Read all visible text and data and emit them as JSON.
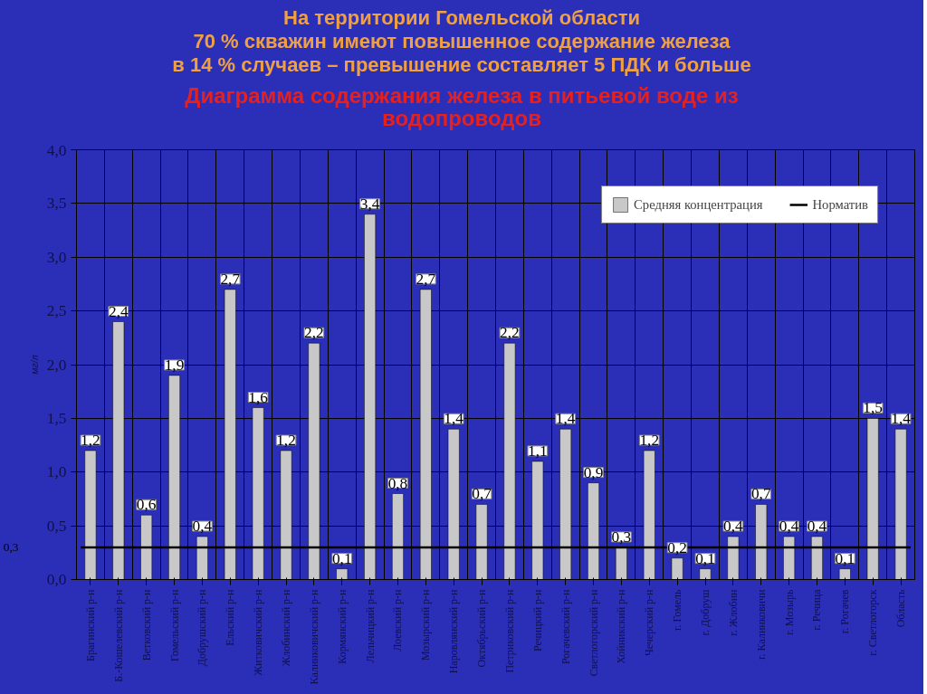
{
  "chart_data": {
    "type": "bar",
    "title": "На территории Гомельской области\n70 % скважин  имеют повышенное содержание железа\nв 14 % случаев – превышение  составляет 5 ПДК и больше",
    "subtitle": "Диаграмма  содержания железа в питьевой воде из\nводопроводов",
    "ylabel": "мг/л",
    "categories": [
      "Брагинский р-н",
      "Б.-Кошелевский р-н",
      "Ветковский р-н",
      "Гомельский р-н",
      "Добрушский р-н",
      "Ельский р-н",
      "Житковичский р-н",
      "Жлобинский р-н",
      "Калинковичский р-н",
      "Кормянский р-н",
      "Лельчицкий р-н",
      "Лоевский р-н",
      "Мозырский р-н",
      "Наровлянский р-н",
      "Октябрьский р-н",
      "Петриковский р-н",
      "Речицкий р-н",
      "Рогачевский р-н",
      "Светлогорский р-н",
      "Хойникский р-н",
      "Чечерский р-н",
      "г. Гомель",
      "г. Добруш",
      "г. Жлобин",
      "г. Калинковичи",
      "г. Мозырь",
      "г. Речица",
      "г. Рогачев",
      "г. Светлогорск",
      "Область"
    ],
    "series": [
      {
        "name": "Средняя концентрация",
        "color": "#c8c8c8",
        "values": [
          1.2,
          2.4,
          0.6,
          1.9,
          0.4,
          2.7,
          1.6,
          1.2,
          2.2,
          0.1,
          3.4,
          0.8,
          2.7,
          1.4,
          0.7,
          2.2,
          1.1,
          1.4,
          0.9,
          0.3,
          1.2,
          0.2,
          0.1,
          0.4,
          0.7,
          0.4,
          0.4,
          0.1,
          1.5,
          1.4
        ],
        "value_labels": [
          "1,2",
          "2,4",
          "0,6",
          "1,9",
          "0,4",
          "2,7",
          "1,6",
          "1,2",
          "2,2",
          "0,1",
          "3,4",
          "0,8",
          "2,7",
          "1,4",
          "0,7",
          "2,2",
          "1,1",
          "1,4",
          "0,9",
          "0,3",
          "1,2",
          "0,2",
          "0,1",
          "0,4",
          "0,7",
          "0,4",
          "0,4",
          "0,1",
          "1,5",
          "1,4"
        ]
      }
    ],
    "ref_lines": [
      {
        "axis": "y",
        "value": 0.3,
        "label": "Норматив",
        "color": "#000000"
      }
    ],
    "annotations": [
      "0,3"
    ],
    "ylim": [
      0,
      4
    ],
    "yticks": [
      {
        "value": 0,
        "label": "0,0"
      },
      {
        "value": 0.5,
        "label": "0,5"
      },
      {
        "value": 1,
        "label": "1,0"
      },
      {
        "value": 1.5,
        "label": "1,5"
      },
      {
        "value": 2,
        "label": "2,0"
      },
      {
        "value": 2.5,
        "label": "2,5"
      },
      {
        "value": 3,
        "label": "3,0"
      },
      {
        "value": 3.5,
        "label": "3,5"
      },
      {
        "value": 4,
        "label": "4,0"
      }
    ],
    "grid": true,
    "legend": "top right"
  }
}
